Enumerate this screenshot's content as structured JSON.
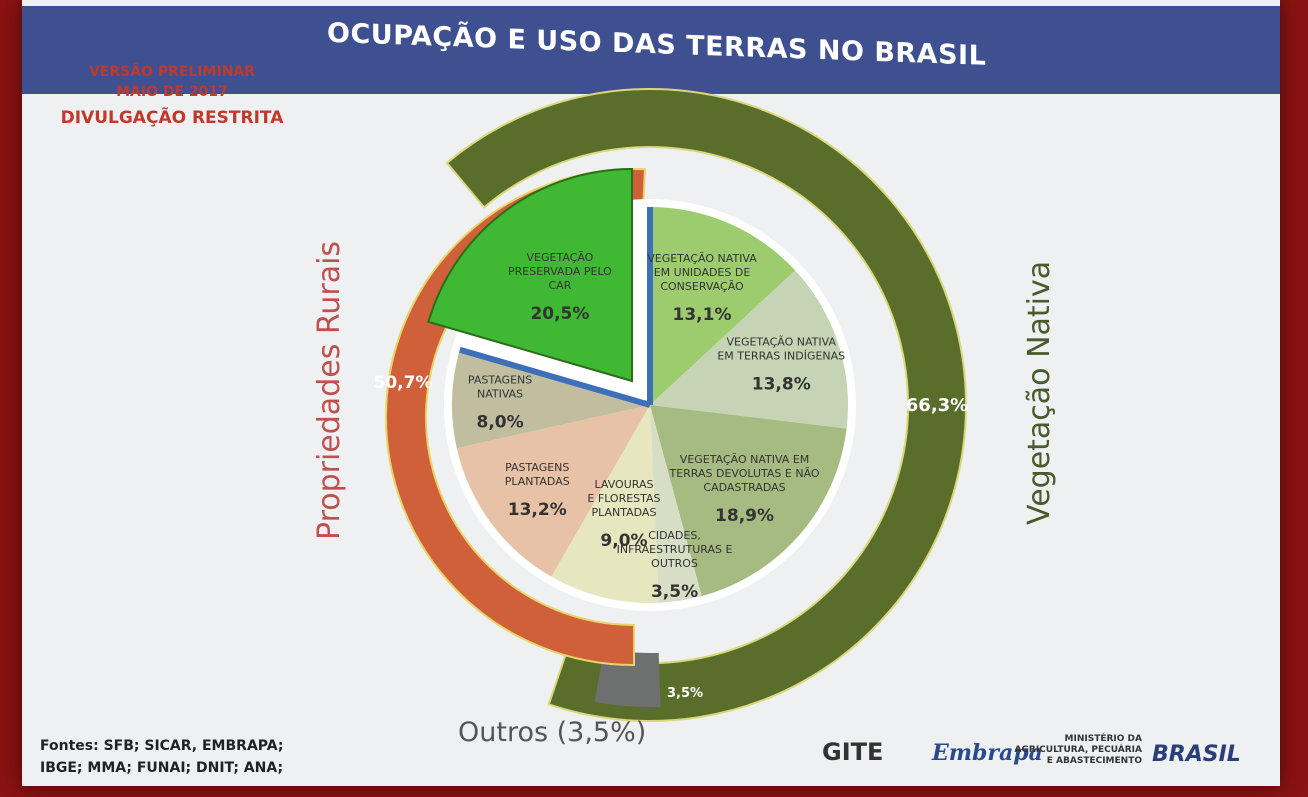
{
  "slide": {
    "title": "OCUPAÇÃO E USO  DAS TERRAS NO BRASIL",
    "notice": [
      "VERSÃO PRELIMINAR",
      "MAIO DE 2017",
      "DIVULGAÇÃO RESTRITA"
    ],
    "left_side_label": "Propriedades Rurais",
    "right_side_label": "Vegetação Nativa",
    "sources": [
      "Fontes: SFB; SICAR, EMBRAPA;",
      "IBGE; MMA; FUNAI; DNIT; ANA;"
    ],
    "outros_label": "Outros (3,5%)",
    "logos": {
      "gite": "GITE",
      "embrapa": "Embrapa",
      "ministry": [
        "MINISTÉRIO DA",
        "AGRICULTURA, PECUÁRIA",
        "E ABASTECIMENTO"
      ],
      "brasil": "BRASIL"
    }
  },
  "colors": {
    "title_bar": "#3f5090",
    "rural_ring": "#d0603a",
    "native_ring": "#5a6e2c",
    "other_ring": "#6e7070",
    "car_slice": "#3fb833",
    "blue_edge": "#3d70b8"
  },
  "chart_data": {
    "type": "pie",
    "title": "OCUPAÇÃO E USO  DAS TERRAS NO BRASIL",
    "inner_pie": [
      {
        "label": "VEGETAÇÃO NATIVA EM UNIDADES DE CONSERVAÇÃO",
        "value": 13.1,
        "value_text": "13,1%",
        "color": "#9ccc6e"
      },
      {
        "label": "VEGETAÇÃO NATIVA EM TERRAS INDÍGENAS",
        "value": 13.8,
        "value_text": "13,8%",
        "color": "#c5d4b4"
      },
      {
        "label": "VEGETAÇÃO NATIVA EM TERRAS DEVOLUTAS E NÃO CADASTRADAS",
        "value": 18.9,
        "value_text": "18,9%",
        "color": "#a6bb82"
      },
      {
        "label": "CIDADES, INFRAESTRUTURAS E OUTROS",
        "value": 3.5,
        "value_text": "3,5%",
        "color": "#d8ddc6"
      },
      {
        "label": "LAVOURAS E FLORESTAS PLANTADAS",
        "value": 9.0,
        "value_text": "9,0%",
        "color": "#e6e6bf"
      },
      {
        "label": "PASTAGENS PLANTADAS",
        "value": 13.2,
        "value_text": "13,2%",
        "color": "#e8c2a6"
      },
      {
        "label": "PASTAGENS NATIVAS",
        "value": 8.0,
        "value_text": "8,0%",
        "color": "#c1bea0"
      },
      {
        "label": "VEGETAÇÃO PRESERVADA PELO CAR",
        "value": 20.5,
        "value_text": "20,5%",
        "color": "#3fb833"
      }
    ],
    "outer_ring": [
      {
        "label": "Propriedades Rurais",
        "value": 50.7,
        "value_text": "50,7%",
        "color": "#d0603a"
      },
      {
        "label": "Vegetação Nativa",
        "value": 66.3,
        "value_text": "66,3%",
        "color": "#5a6e2c"
      },
      {
        "label": "Outros",
        "value": 3.5,
        "value_text": "3,5%",
        "color": "#6e7070"
      }
    ]
  }
}
